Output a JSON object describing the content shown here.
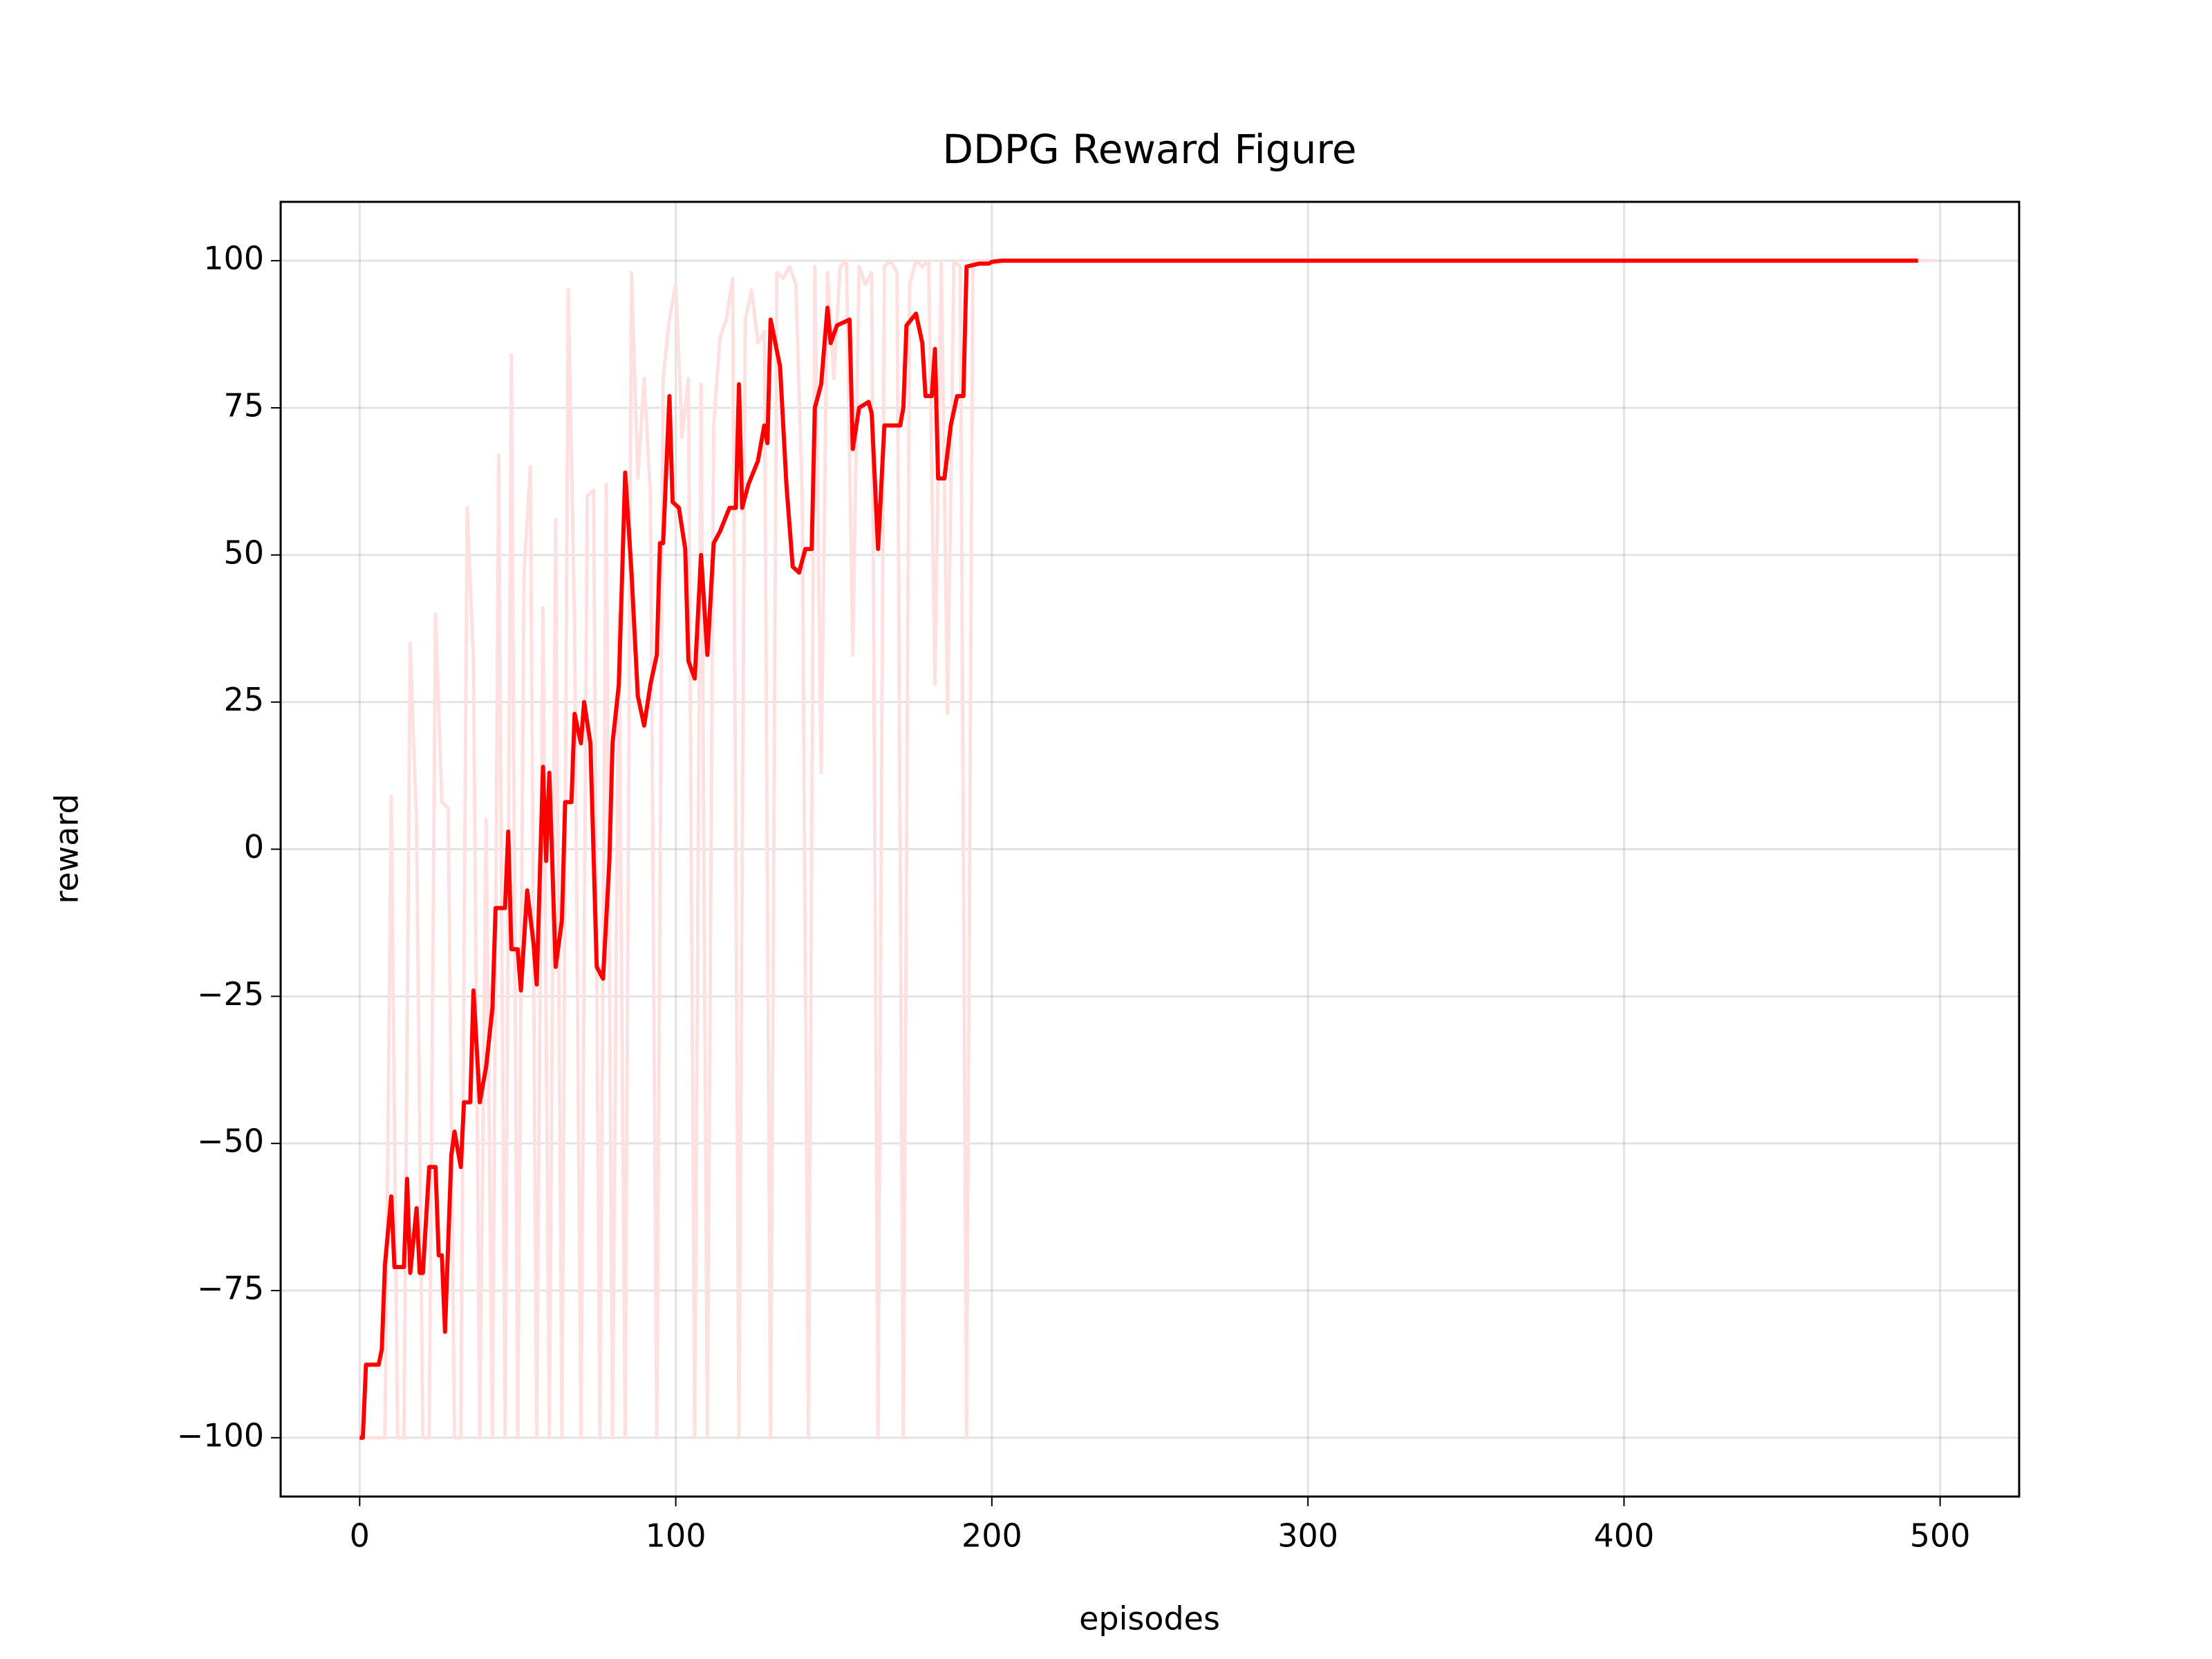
{
  "chart_data": {
    "type": "line",
    "title": "DDPG Reward Figure",
    "x_label": "episodes",
    "y_label": "reward",
    "xlim": [
      -25,
      525
    ],
    "ylim": [
      -110,
      110
    ],
    "xticks": [
      0,
      100,
      200,
      300,
      400,
      500
    ],
    "yticks": [
      {
        "value": -100,
        "label": "−100"
      },
      {
        "value": -75,
        "label": "−75"
      },
      {
        "value": -50,
        "label": "−50"
      },
      {
        "value": -25,
        "label": "−25"
      },
      0,
      25,
      50,
      75,
      100
    ],
    "grid": true,
    "series": [
      {
        "color": "#ffe0e0",
        "x": [
          0,
          2,
          4,
          6,
          8,
          10,
          12,
          14,
          16,
          18,
          20,
          22,
          24,
          26,
          28,
          30,
          32,
          34,
          36,
          38,
          40,
          42,
          44,
          46,
          48,
          50,
          52,
          54,
          56,
          58,
          60,
          62,
          64,
          66,
          68,
          70,
          72,
          74,
          76,
          78,
          80,
          82,
          84,
          86,
          88,
          90,
          92,
          94,
          96,
          98,
          100,
          102,
          104,
          106,
          108,
          110,
          112,
          114,
          116,
          118,
          120,
          122,
          124,
          126,
          128,
          130,
          132,
          134,
          136,
          138,
          140,
          142,
          144,
          146,
          148,
          150,
          152,
          154,
          156,
          158,
          160,
          162,
          164,
          166,
          168,
          170,
          172,
          174,
          176,
          178,
          180,
          182,
          184,
          186,
          188,
          190,
          192,
          194,
          200,
          300,
          400,
          499
        ],
        "values": [
          -100,
          -100,
          -100,
          -100,
          -100,
          9,
          -100,
          -100,
          35,
          4,
          -100,
          -100,
          40,
          8,
          7,
          -100,
          -100,
          58,
          32,
          -100,
          5,
          -100,
          67,
          -100,
          84,
          -100,
          47,
          65,
          -100,
          41,
          -100,
          56,
          -100,
          95,
          38,
          -100,
          60,
          61,
          -100,
          62,
          -100,
          40,
          -100,
          98,
          63,
          80,
          60,
          -100,
          80,
          90,
          96,
          70,
          80,
          -100,
          79,
          -100,
          72,
          87,
          90,
          97,
          -100,
          90,
          95,
          86,
          88,
          -100,
          98,
          97,
          99,
          96,
          60,
          -100,
          99,
          13,
          98,
          80,
          99,
          100,
          33,
          99,
          96,
          98,
          -100,
          99,
          100,
          98,
          -100,
          96,
          100,
          99,
          100,
          28,
          100,
          23,
          100,
          99,
          -100,
          100,
          100,
          100,
          100,
          100
        ]
      },
      {
        "color": "#ff0000",
        "x": [
          0,
          1,
          2,
          6,
          7,
          8,
          10,
          11,
          14,
          15,
          16,
          18,
          19,
          20,
          22,
          24,
          25,
          26,
          27,
          29,
          30,
          32,
          33,
          35,
          36,
          38,
          40,
          42,
          43,
          46,
          47,
          48,
          50,
          51,
          53,
          55,
          56,
          58,
          59,
          60,
          62,
          64,
          65,
          67,
          68,
          70,
          71,
          73,
          75,
          77,
          79,
          80,
          82,
          84,
          86,
          88,
          90,
          92,
          94,
          95,
          96,
          98,
          99,
          101,
          103,
          104,
          106,
          108,
          110,
          112,
          114,
          117,
          119,
          120,
          121,
          123,
          126,
          128,
          129,
          130,
          133,
          135,
          137,
          139,
          141,
          143,
          144,
          146,
          148,
          149,
          151,
          155,
          156,
          158,
          161,
          162,
          164,
          166,
          171,
          172,
          173,
          176,
          178,
          179,
          181,
          182,
          183,
          185,
          187,
          189,
          191,
          192,
          196,
          199,
          200,
          203,
          493
        ],
        "values": [
          -100,
          -100,
          -87.6,
          -87.6,
          -85,
          -70.6,
          -59,
          -71,
          -71,
          -56,
          -72,
          -61,
          -72,
          -72,
          -54,
          -54,
          -69,
          -69,
          -82,
          -52,
          -48,
          -54,
          -43,
          -43,
          -24,
          -43,
          -37,
          -27,
          -10,
          -10,
          3,
          -17,
          -17,
          -24,
          -7,
          -16,
          -23,
          14,
          -2,
          13,
          -20,
          -12,
          8,
          8,
          23,
          18,
          25,
          18,
          -20,
          -22,
          -2,
          18,
          28,
          64,
          47,
          26,
          21,
          28,
          33,
          52,
          52,
          77,
          59,
          58,
          51,
          32,
          29,
          50,
          33,
          52,
          54,
          58,
          58,
          79,
          58,
          62,
          66,
          72,
          69,
          90,
          82,
          62,
          48,
          47,
          51,
          51,
          75,
          79,
          92,
          86,
          89,
          90,
          68,
          75,
          76,
          74,
          51,
          72,
          72,
          75,
          89,
          91,
          86,
          77,
          77,
          85,
          63,
          63,
          72,
          77,
          77,
          99,
          99.5,
          99.5,
          99.8,
          100,
          100
        ]
      }
    ]
  }
}
